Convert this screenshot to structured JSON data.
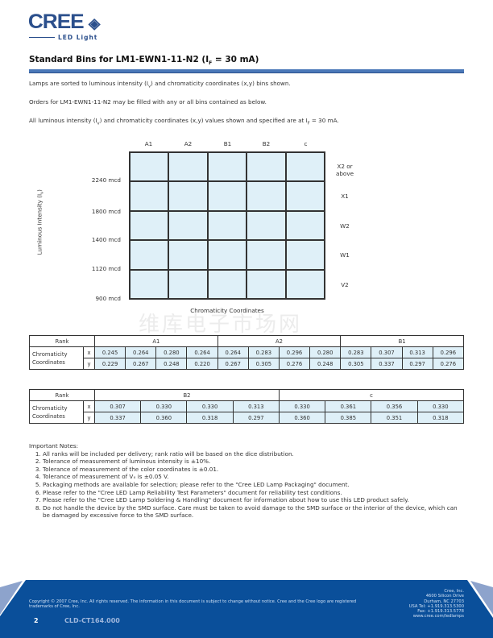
{
  "header": {
    "logo": "CREE",
    "logo_sub": "LED Light",
    "title": "Standard Bins for LM1-EWN1-11-N2 (I",
    "title_sub": "F",
    "title_end": " = 30 mA)"
  },
  "intro": [
    {
      "a": "Lamps are sorted to luminous intensity (I",
      "s": "v",
      "b": ") and chromaticity coordinates (x,y) bins shown."
    },
    {
      "a": "Orders for LM1-EWN1-11-N2 may be filled with any or all bins contained as below.",
      "s": "",
      "b": ""
    },
    {
      "a": "All luminous intensity (I",
      "s": "v",
      "b": ") and chromaticity coordinates (x,y) values shown and specified are at I",
      "s2": "F",
      "c": " = 30 mA."
    }
  ],
  "bin_chart": {
    "columns": [
      "A1",
      "A2",
      "B1",
      "B2",
      "c"
    ],
    "intensity_bins": [
      "X2 or above",
      "X1",
      "W2",
      "W1",
      "V2"
    ],
    "intensity_limits": [
      "2240 mcd",
      "1800 mcd",
      "1400 mcd",
      "1120 mcd",
      "900 mcd"
    ],
    "ylabel": "Luminous Intensity (I",
    "ylabel_sub": "v",
    "ylabel_end": ")",
    "xlabel": "Chromaticity Coordinates",
    "cell_color": "#dff0f8"
  },
  "watermark": "维库电子市场网",
  "table1": {
    "rank_label": "Rank",
    "coord_label": "Chromaticity Coordinates",
    "x_label": "x",
    "y_label": "y",
    "groups": [
      {
        "rank": "A1",
        "x": [
          "0.245",
          "0.264",
          "0.280",
          "0.264"
        ],
        "y": [
          "0.229",
          "0.267",
          "0.248",
          "0.220"
        ]
      },
      {
        "rank": "A2",
        "x": [
          "0.264",
          "0.283",
          "0.296",
          "0.280"
        ],
        "y": [
          "0.267",
          "0.305",
          "0.276",
          "0.248"
        ]
      },
      {
        "rank": "B1",
        "x": [
          "0.283",
          "0.307",
          "0.313",
          "0.296"
        ],
        "y": [
          "0.305",
          "0.337",
          "0.297",
          "0.276"
        ]
      }
    ]
  },
  "table2": {
    "rank_label": "Rank",
    "coord_label": "Chromaticity Coordinates",
    "x_label": "x",
    "y_label": "y",
    "groups": [
      {
        "rank": "B2",
        "x": [
          "0.307",
          "0.330",
          "0.330",
          "0.313"
        ],
        "y": [
          "0.337",
          "0.360",
          "0.318",
          "0.297"
        ]
      },
      {
        "rank": "c",
        "x": [
          "0.330",
          "0.361",
          "0.356",
          "0.330"
        ],
        "y": [
          "0.360",
          "0.385",
          "0.351",
          "0.318"
        ]
      }
    ]
  },
  "notes": {
    "title": "Important Notes:",
    "items": [
      "All ranks will be included per delivery; rank ratio will be based on the dice distribution.",
      "Tolerance of measurement of luminous intensity is ±10%.",
      "Tolerance of measurement of the color coordinates is ±0.01.",
      "Tolerance of measurement of Vₓ is ±0.05 V.",
      "Packaging methods are available for selection; please refer to the \"Cree LED Lamp Packaging\" document.",
      "Please refer to the \"Cree LED Lamp Reliability Test Parameters\" document for reliability test conditions.",
      "Please refer to the \"Cree LED Lamp Soldering & Handling\" document for information about how to use this LED product safely.",
      "Do not handle the device by the SMD surface. Care must be taken to avoid damage to the SMD surface or the interior of the device, which can be damaged by excessive force to the SMD surface."
    ]
  },
  "footer": {
    "copyright": "Copyright © 2007 Cree, Inc. All rights reserved. The information in this document is subject to change without notice. Cree and the Cree logo are registered trademarks of Cree, Inc.",
    "page": "2",
    "doc_id": "CLD-CT164.000",
    "address": [
      "Cree, Inc.",
      "4600 Silicon Drive",
      "Durham, NC 27703",
      "USA Tel: +1.919.313.5300",
      "Fax: +1.919.313.5778",
      "www.cree.com/ledlamps"
    ],
    "band_color": "#0a4f9a"
  }
}
